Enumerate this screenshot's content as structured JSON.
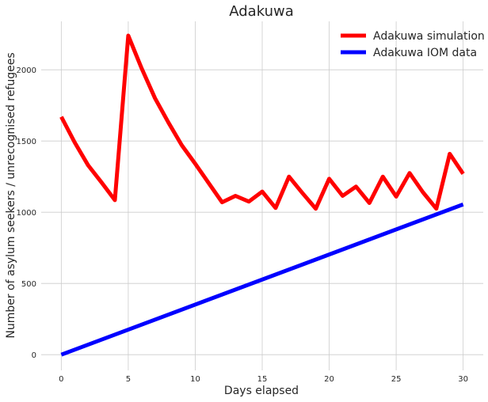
{
  "chart_data": {
    "type": "line",
    "title": "Adakuwa",
    "xlabel": "Days elapsed",
    "ylabel": "Number of asylum seekers / unrecognised refugees",
    "xlim": [
      -1.5,
      31.5
    ],
    "ylim": [
      -110,
      2340
    ],
    "xticks": [
      0,
      5,
      10,
      15,
      20,
      25,
      30
    ],
    "yticks": [
      0,
      500,
      1000,
      1500,
      2000
    ],
    "grid": true,
    "legend_position": "top-right",
    "series": [
      {
        "name": "Adakuwa simulation",
        "color": "#ff0000",
        "x": [
          0,
          1,
          2,
          3,
          4,
          5,
          6,
          7,
          8,
          9,
          10,
          11,
          12,
          13,
          14,
          15,
          16,
          17,
          18,
          19,
          20,
          21,
          22,
          23,
          24,
          25,
          26,
          27,
          28,
          29,
          30
        ],
        "y": [
          1670,
          1490,
          1330,
          1210,
          1085,
          2240,
          2010,
          1800,
          1630,
          1470,
          1340,
          1205,
          1070,
          1115,
          1075,
          1145,
          1030,
          1250,
          1135,
          1025,
          1235,
          1115,
          1180,
          1065,
          1250,
          1110,
          1275,
          1140,
          1025,
          1410,
          1270
        ]
      },
      {
        "name": "Adakuwa IOM data",
        "color": "#0000ff",
        "x": [
          0,
          30
        ],
        "y": [
          0,
          1055
        ]
      }
    ]
  }
}
